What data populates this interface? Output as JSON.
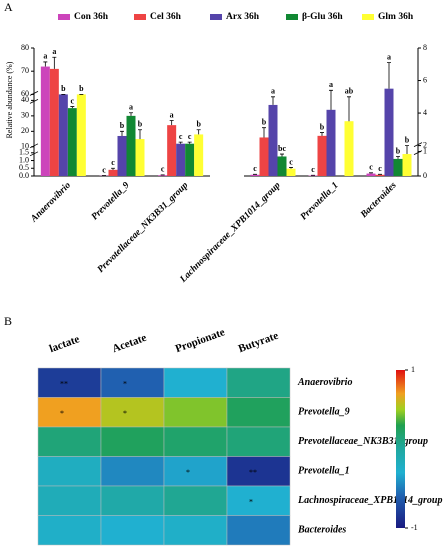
{
  "chart_data": [
    {
      "type": "bar",
      "panel": "A",
      "ylabel": "Relative abundance (%)",
      "categories": [
        "Anaerovibrio",
        "Prevotella_9",
        "Prevotellaceae_NK3B31_group"
      ],
      "ylim": [
        0,
        80
      ],
      "ybreaks": [
        [
          1.5,
          10
        ],
        [
          40,
          60
        ]
      ],
      "yticks": [
        {
          "value": 0,
          "label": "0.0"
        },
        {
          "value": 0.5,
          "label": "0.5"
        },
        {
          "value": 1,
          "label": "1.0"
        },
        1.5,
        10,
        20,
        30,
        40,
        60,
        70,
        80
      ],
      "series": [
        {
          "name": "Con 36h",
          "color": "#cc44bb",
          "values": [
            72,
            0.02,
            0.05
          ],
          "errors": [
            2,
            0.01,
            0.02
          ],
          "letters": [
            "a",
            "c",
            "c"
          ]
        },
        {
          "name": "Cel 36h",
          "color": "#ee4444",
          "values": [
            71,
            0.4,
            24
          ],
          "errors": [
            5,
            0.1,
            3
          ],
          "letters": [
            "a",
            "c",
            "a"
          ]
        },
        {
          "name": "Arx 36h",
          "color": "#5544aa",
          "values": [
            46,
            17,
            12
          ],
          "errors": [
            4,
            3,
            1
          ],
          "letters": [
            "b",
            "b",
            "c"
          ]
        },
        {
          "name": "β-Glu 36h",
          "color": "#118833",
          "values": [
            35,
            30,
            12
          ],
          "errors": [
            1,
            2,
            1
          ],
          "letters": [
            "c",
            "a",
            "c"
          ]
        },
        {
          "name": "Glm 36h",
          "color": "#ffff33",
          "values": [
            50,
            15,
            18
          ],
          "errors": [
            10,
            6,
            3
          ],
          "letters": [
            "b",
            "b",
            "b"
          ]
        }
      ]
    },
    {
      "type": "bar",
      "categories": [
        "Lachnospiraceae_XPB1014_group",
        "Prevotella_1",
        "Bacteroides"
      ],
      "ylim": [
        0,
        8
      ],
      "ybreaks": [
        [
          1,
          2
        ]
      ],
      "yticks": [
        0,
        1,
        2,
        4,
        6,
        8
      ],
      "series": [
        {
          "color": "#cc44bb",
          "values": [
            0.05,
            0.02,
            0.1
          ],
          "errors": [
            0.02,
            0.01,
            0.03
          ],
          "letters": [
            "c",
            "c",
            "c"
          ]
        },
        {
          "color": "#ee4444",
          "values": [
            2.5,
            2.6,
            0.05
          ],
          "errors": [
            0.6,
            0.2,
            0.02
          ],
          "letters": [
            "b",
            "b",
            "c"
          ]
        },
        {
          "color": "#5544aa",
          "values": [
            4.5,
            4.2,
            5.5
          ],
          "errors": [
            0.5,
            1.2,
            1.6
          ],
          "letters": [
            "a",
            "a",
            "a"
          ]
        },
        {
          "color": "#118833",
          "values": [
            0.8,
            0,
            0.7
          ],
          "errors": [
            0.1,
            0,
            0.1
          ],
          "letters": [
            "bc",
            null,
            "b"
          ]
        },
        {
          "color": "#ffff33",
          "values": [
            0.3,
            3.5,
            0.9
          ],
          "errors": [
            0.05,
            1.5,
            0.2
          ],
          "letters": [
            "c",
            "ab",
            "b"
          ]
        }
      ]
    },
    {
      "type": "heatmap",
      "panel": "B",
      "columns": [
        "lactate",
        "Acetate",
        "Propionate",
        "Butyrate"
      ],
      "rows": [
        "Anaerovibrio",
        "Prevotella_9",
        "Prevotellaceae_NK3B31_group",
        "Prevotella_1",
        "Lachnospiraceae_XPB1014_group",
        "Bacteroides"
      ],
      "values": [
        [
          -0.8,
          -0.6,
          -0.3,
          0.1
        ],
        [
          0.7,
          0.55,
          0.45,
          0.25
        ],
        [
          0.15,
          0.25,
          0.2,
          0.15
        ],
        [
          -0.2,
          -0.45,
          -0.35,
          -0.85
        ],
        [
          -0.15,
          -0.05,
          0.05,
          -0.3
        ],
        [
          -0.25,
          -0.3,
          -0.25,
          -0.5
        ]
      ],
      "annotations": [
        [
          "**",
          "*",
          null,
          null
        ],
        [
          "*",
          "*",
          null,
          null
        ],
        [
          null,
          null,
          null,
          null
        ],
        [
          null,
          null,
          "*",
          "**"
        ],
        [
          null,
          null,
          null,
          "*"
        ],
        [
          null,
          null,
          null,
          null
        ]
      ],
      "clim": [
        -1,
        1
      ],
      "cticks": [
        -1,
        1
      ]
    }
  ]
}
